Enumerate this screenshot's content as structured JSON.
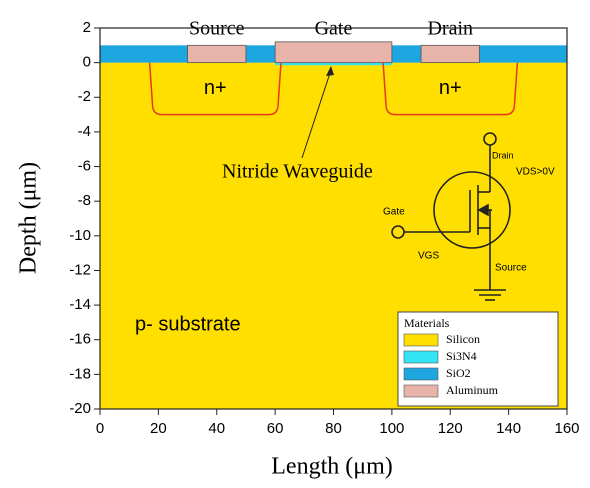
{
  "chart_data": {
    "type": "section",
    "xlabel": "Length (μm)",
    "ylabel": "Depth (μm)",
    "xlim": [
      0,
      160
    ],
    "ylim": [
      -20,
      2
    ],
    "xticks": [
      0,
      20,
      40,
      60,
      80,
      100,
      120,
      140,
      160
    ],
    "yticks": [
      2,
      0,
      -2,
      -4,
      -6,
      -8,
      -10,
      -12,
      -14,
      -16,
      -18,
      -20
    ],
    "legend_title": "Materials",
    "series": [
      {
        "name": "Silicon",
        "color": "#ffdf00",
        "rects": [
          [
            0,
            160,
            -20,
            0
          ]
        ]
      },
      {
        "name": "Si3N4",
        "color": "#33e4f4",
        "rects": [
          [
            60,
            100,
            -0.15,
            0
          ]
        ]
      },
      {
        "name": "SiO2",
        "color": "#1ea6e0",
        "rects": [
          [
            0,
            160,
            0,
            1
          ]
        ]
      },
      {
        "name": "Aluminum",
        "color": "#e8b4aa",
        "rects": [
          [
            30,
            50,
            0,
            1
          ],
          [
            60,
            100,
            0,
            1.2
          ],
          [
            110,
            130,
            0,
            1
          ]
        ]
      }
    ],
    "wells": [
      {
        "label": "n+",
        "x": [
          17,
          62
        ],
        "depth": -3
      },
      {
        "label": "n+",
        "x": [
          97,
          143
        ],
        "depth": -3
      }
    ],
    "well_color": "#e8371e",
    "contact_labels": [
      "Source",
      "Gate",
      "Drain"
    ],
    "annotation": "Nitride Waveguide",
    "substrate_label": "p- substrate",
    "mosfet": {
      "drain": "Drain",
      "gate": "Gate",
      "source": "Source",
      "vgs": "VGS",
      "vds": "VDS>0V"
    }
  }
}
